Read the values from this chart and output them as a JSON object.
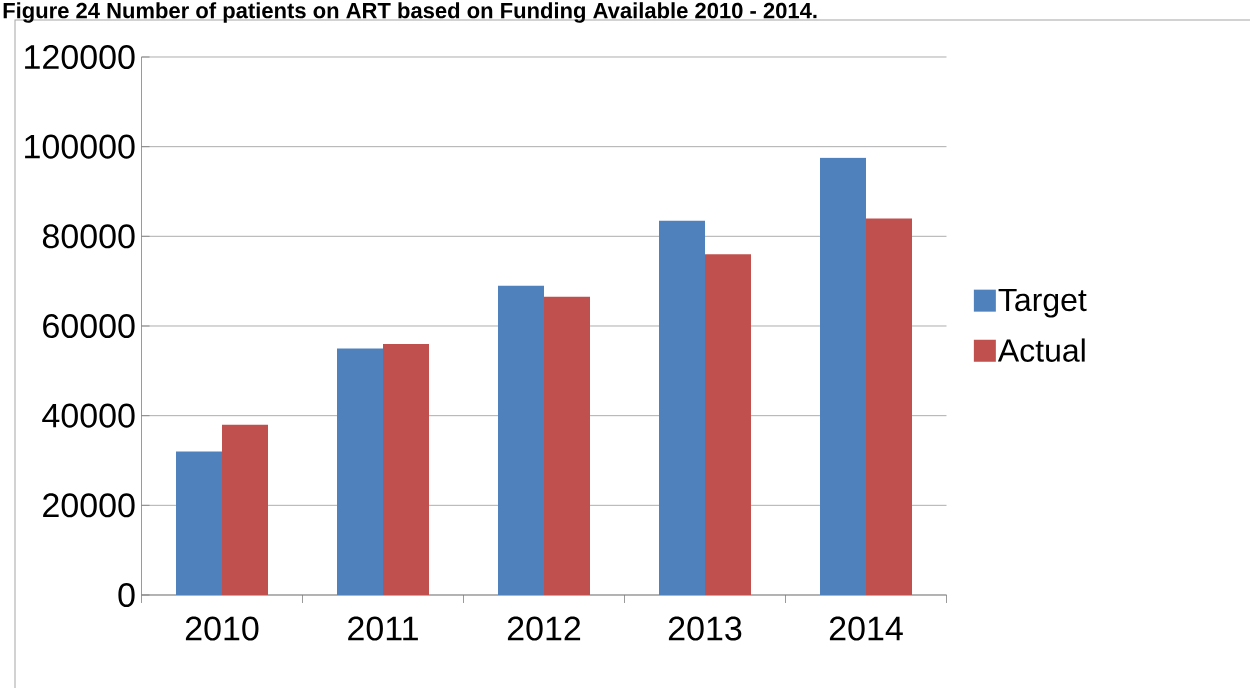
{
  "chart_data": {
    "type": "bar",
    "title": "Figure 24 Number of patients on ART based on Funding Available 2010 - 2014.",
    "categories": [
      "2010",
      "2011",
      "2012",
      "2013",
      "2014"
    ],
    "series": [
      {
        "name": "Target",
        "color": "#4f81bd",
        "values": [
          32000,
          55000,
          69000,
          83500,
          97500
        ]
      },
      {
        "name": "Actual",
        "color": "#c0504d",
        "values": [
          38000,
          56000,
          66500,
          76000,
          84000
        ]
      }
    ],
    "ylim": [
      0,
      120000
    ],
    "yticks": [
      0,
      20000,
      40000,
      60000,
      80000,
      100000,
      120000
    ],
    "grid": "y",
    "legend": "right"
  }
}
